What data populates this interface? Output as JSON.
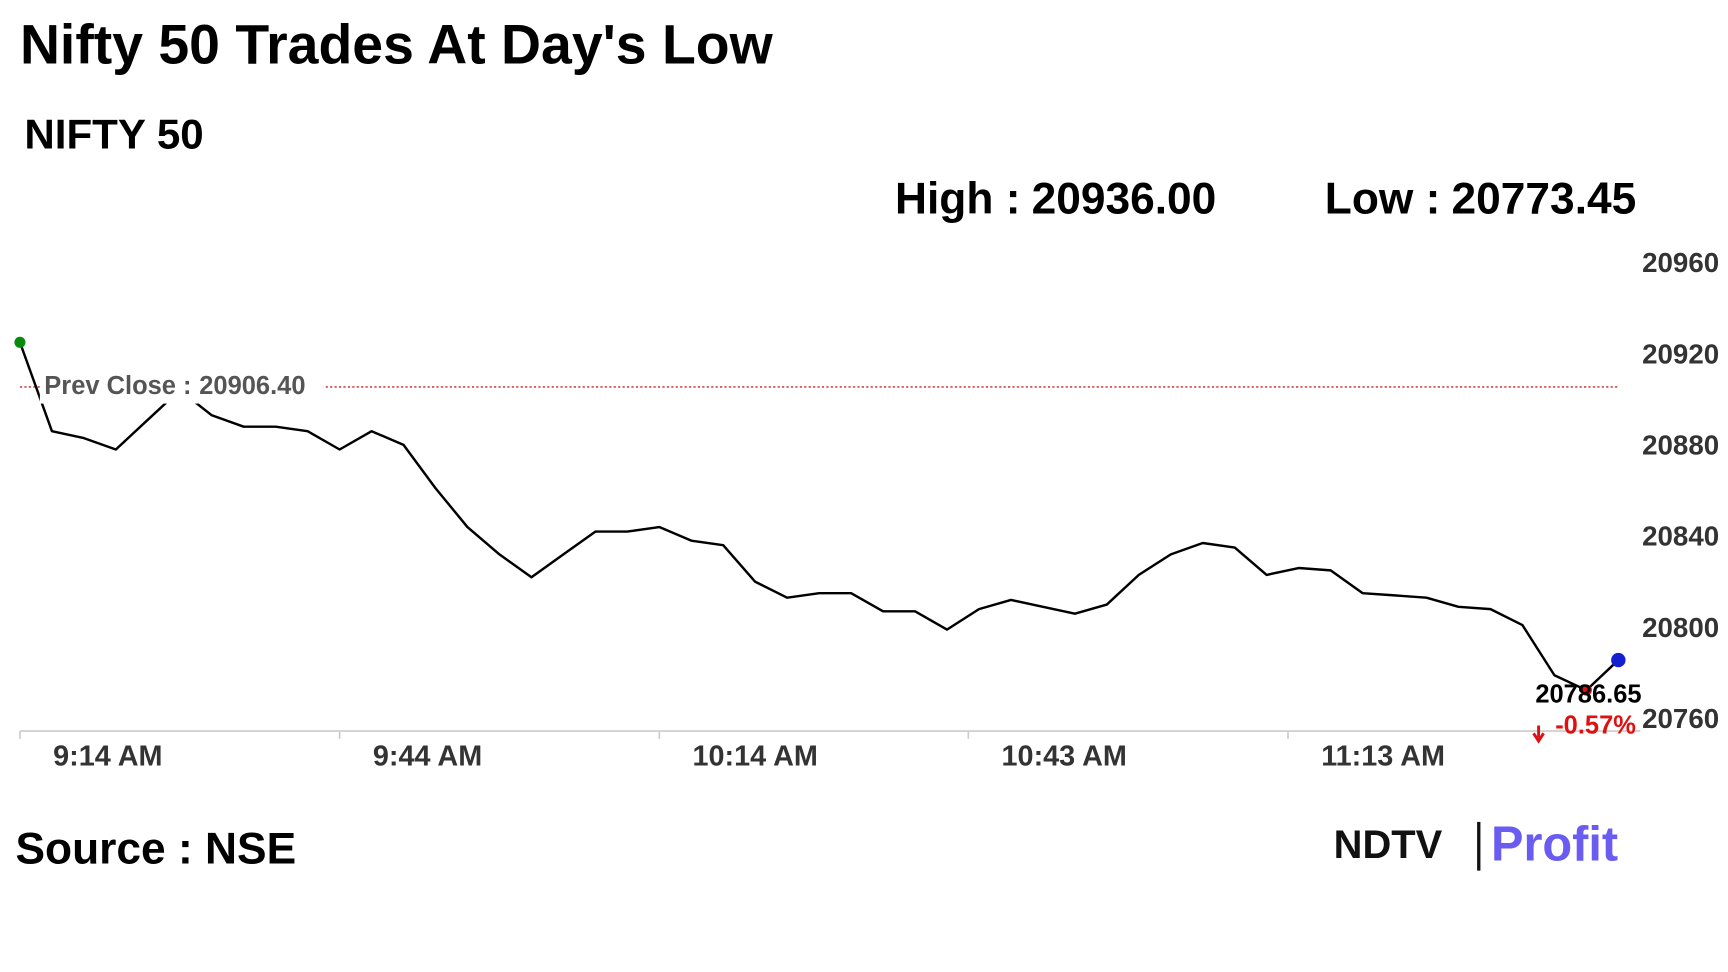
{
  "chart_data": {
    "type": "line",
    "title": "Nifty 50 Trades At Day's Low",
    "subtitle": "NIFTY 50",
    "stats": [
      {
        "name": "High :",
        "value": 20936,
        "label": "20936.00"
      },
      {
        "name": "Low :",
        "value": 20773.45
      }
    ],
    "prev_close": {
      "name": "Prev Close :",
      "value": 20906.4,
      "label": "20906.40"
    },
    "change": {
      "value": -0.57,
      "label": "-0.57%"
    },
    "x": [
      "9:14 AM",
      "9:17 AM",
      "9:20 AM",
      "9:23 AM",
      "9:26 AM",
      "9:29 AM",
      "9:32 AM",
      "9:35 AM",
      "9:38 AM",
      "9:41 AM",
      "9:44 AM",
      "9:47 AM",
      "9:50 AM",
      "9:53 AM",
      "9:56 AM",
      "9:59 AM",
      "10:02 AM",
      "10:05 AM",
      "10:08 AM",
      "10:11 AM",
      "10:14 AM",
      "10:17 AM",
      "10:20 AM",
      "10:23 AM",
      "10:26 AM",
      "10:29 AM",
      "10:32 AM",
      "10:35 AM",
      "10:38 AM",
      "10:41 AM",
      "10:44 AM",
      "10:47 AM",
      "10:50 AM",
      "10:53 AM",
      "10:56 AM",
      "10:59 AM",
      "11:02 AM",
      "11:05 AM",
      "11:08 AM",
      "11:11 AM",
      "11:14 AM",
      "11:17 AM",
      "11:20 AM",
      "11:23 AM",
      "11:26 AM",
      "11:29 AM",
      "11:32 AM",
      "11:35 AM",
      "11:38 AM",
      "11:41 AM",
      "11:44 AM"
    ],
    "values": [
      20926,
      20887,
      20884,
      20879,
      20892,
      20905,
      20894,
      20889,
      20889,
      20887,
      20879,
      20887,
      20881,
      20862,
      20845,
      20833,
      20823,
      20833,
      20843,
      20843,
      20845,
      20839,
      20837,
      20821,
      20814,
      20816,
      20816,
      20808,
      20808,
      20800,
      20809,
      20813,
      20810,
      20807,
      20811,
      20824,
      20833,
      20838,
      20836,
      20824,
      20827,
      20826,
      20816,
      20815,
      20814,
      20810,
      20809,
      20802,
      20780,
      20773.45,
      20786.65
    ],
    "color": "#000000",
    "xlim": [
      "9:14 AM",
      "11:44 AM"
    ],
    "xticks": [
      "9:14 AM",
      "9:44 AM",
      "10:14 AM",
      "10:43 AM",
      "11:13 AM"
    ],
    "ylim": [
      20756,
      20960
    ],
    "yticks": [
      20960,
      20920,
      20880,
      20840,
      20800,
      20760
    ],
    "source": "Source : NSE",
    "logo": [
      "NDTV",
      "Profit"
    ]
  }
}
